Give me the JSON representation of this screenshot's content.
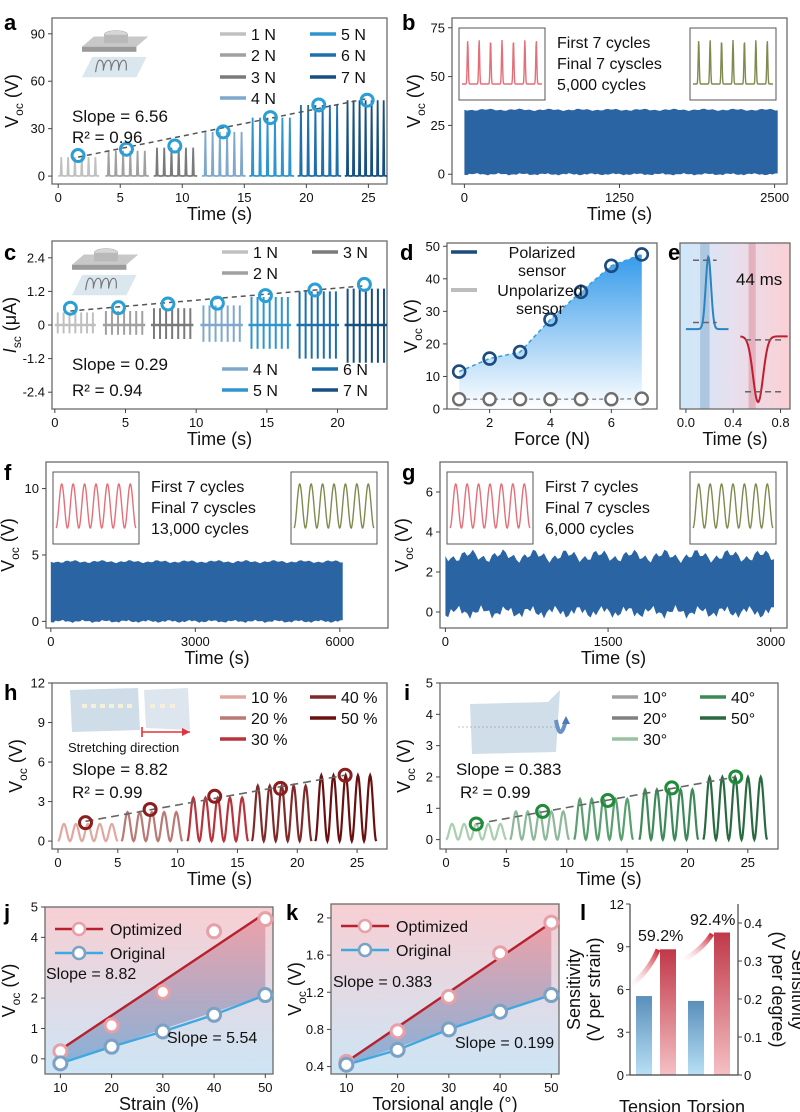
{
  "chart_data": [
    {
      "id": "a",
      "panel_label": "a",
      "type": "line",
      "title": "",
      "xlabel": "Time (s)",
      "ylabel": "V_oc (V)",
      "xlim": [
        -0.5,
        26.5
      ],
      "ylim": [
        -5,
        100
      ],
      "xticks": [
        0,
        5,
        10,
        15,
        20,
        25
      ],
      "yticks": [
        0,
        30,
        60,
        90
      ],
      "legend": {
        "placement": "top-right",
        "columns": 2
      },
      "series": [
        {
          "name": "1 N",
          "color": "#c0c0c0",
          "x_start": 0,
          "x_end": 3.3,
          "peak": 12,
          "cycles": 6
        },
        {
          "name": "2 N",
          "color": "#a0a0a0",
          "x_start": 3.8,
          "x_end": 7.3,
          "peak": 16,
          "cycles": 6
        },
        {
          "name": "3 N",
          "color": "#7a7a7a",
          "x_start": 7.7,
          "x_end": 11.2,
          "peak": 18,
          "cycles": 6
        },
        {
          "name": "4 N",
          "color": "#7fa8cc",
          "x_start": 11.6,
          "x_end": 15.1,
          "peak": 28,
          "cycles": 6
        },
        {
          "name": "5 N",
          "color": "#2f95cf",
          "x_start": 15.4,
          "x_end": 19.0,
          "peak": 37,
          "cycles": 6
        },
        {
          "name": "6 N",
          "color": "#1f6fad",
          "x_start": 19.3,
          "x_end": 22.8,
          "peak": 45,
          "cycles": 6
        },
        {
          "name": "7 N",
          "color": "#164f80",
          "x_start": 23.1,
          "x_end": 26.5,
          "peak": 48,
          "cycles": 7
        }
      ],
      "markers": {
        "color": "#2a9fd6",
        "x": [
          1.6,
          5.5,
          9.4,
          13.3,
          17.1,
          21.0,
          24.9
        ],
        "y": [
          13,
          17,
          19,
          28,
          37,
          45,
          48
        ]
      },
      "fit_line": {
        "x": [
          1.6,
          24.9
        ],
        "y": [
          12,
          49
        ]
      },
      "annotations": [
        "Slope = 6.56",
        "R² = 0.96"
      ],
      "inset": "device-illustration"
    },
    {
      "id": "b",
      "panel_label": "b",
      "type": "area",
      "xlabel": "Time (s)",
      "ylabel": "V_oc (V)",
      "xlim": [
        -100,
        2600
      ],
      "ylim": [
        -5,
        80
      ],
      "xticks": [
        0,
        1250,
        2500
      ],
      "yticks": [
        0,
        25,
        50,
        75
      ],
      "band": {
        "low": 0,
        "high": 33,
        "color": "#2a64a3"
      },
      "legend_text": [
        {
          "text": "First 7 cycles",
          "color": "#e0506a"
        },
        {
          "text": "Final 7 cyscles",
          "color": "#2a64a3"
        },
        {
          "text": "5,000 cycles",
          "color": "#5a5f1c"
        }
      ],
      "insets": [
        {
          "color": "#e46f78",
          "shape": "spike",
          "cycles": 7
        },
        {
          "color": "#7f8a4f",
          "shape": "spike",
          "cycles": 7
        }
      ]
    },
    {
      "id": "c",
      "panel_label": "c",
      "type": "line",
      "xlabel": "Time (s)",
      "ylabel": "I_sc (μA)",
      "xlim": [
        -0.2,
        23.5
      ],
      "ylim": [
        -3.0,
        3.0
      ],
      "xticks": [
        0,
        5,
        10,
        15,
        20
      ],
      "yticks": [
        -2.4,
        -1.2,
        0,
        1.2,
        2.4
      ],
      "series": [
        {
          "name": "1 N",
          "color": "#c0c0c0",
          "x_start": 0,
          "x_end": 2.9,
          "pos": 0.45,
          "neg": -0.3
        },
        {
          "name": "2 N",
          "color": "#a0a0a0",
          "x_start": 3.4,
          "x_end": 6.4,
          "pos": 0.5,
          "neg": -0.35
        },
        {
          "name": "3 N",
          "color": "#7a7a7a",
          "x_start": 6.8,
          "x_end": 9.8,
          "pos": 0.6,
          "neg": -0.5
        },
        {
          "name": "4 N",
          "color": "#7fa8cc",
          "x_start": 10.3,
          "x_end": 13.3,
          "pos": 0.7,
          "neg": -0.6
        },
        {
          "name": "5 N",
          "color": "#2f95cf",
          "x_start": 13.7,
          "x_end": 16.7,
          "pos": 1.0,
          "neg": -0.85
        },
        {
          "name": "6 N",
          "color": "#1f6fad",
          "x_start": 17.1,
          "x_end": 20.1,
          "pos": 1.2,
          "neg": -1.2
        },
        {
          "name": "7 N",
          "color": "#164f80",
          "x_start": 20.5,
          "x_end": 23.5,
          "pos": 1.3,
          "neg": -1.35
        }
      ],
      "markers": {
        "color": "#2a9fd6",
        "x": [
          1.1,
          4.5,
          8.0,
          11.5,
          14.9,
          18.4,
          21.9
        ],
        "y": [
          0.6,
          0.62,
          0.75,
          0.78,
          1.05,
          1.25,
          1.45
        ]
      },
      "fit_line": {
        "x": [
          1.1,
          21.9
        ],
        "y": [
          0.5,
          1.4
        ]
      },
      "annotations": [
        "Slope = 0.29",
        "R² = 0.94"
      ],
      "legend_top": [
        "1 N",
        "3 N",
        "2 N"
      ],
      "legend_bottom": [
        "4 N",
        "6 N",
        "5 N",
        "7 N"
      ],
      "inset": "device-illustration"
    },
    {
      "id": "d",
      "panel_label": "d",
      "type": "scatter",
      "xlabel": "Force  (N)",
      "ylabel": "V_oc (V)",
      "xlim": [
        0.6,
        7.5
      ],
      "ylim": [
        0,
        51
      ],
      "xticks": [
        2,
        4,
        6
      ],
      "yticks": [
        0,
        10,
        20,
        30,
        40,
        50
      ],
      "x": [
        1,
        2,
        3,
        4,
        5,
        6,
        7
      ],
      "series": [
        {
          "name": "Polarized sensor",
          "color": "#1c4b7d",
          "values": [
            11.5,
            15.5,
            17.5,
            27.5,
            36,
            44,
            47.5
          ]
        },
        {
          "name": "Unpolarized sensor",
          "color": "#6e6e6e",
          "legend_color": "#bdbdbd",
          "values": [
            3,
            3,
            3,
            3,
            3,
            3,
            3.2
          ]
        }
      ]
    },
    {
      "id": "e",
      "panel_label": "e",
      "type": "line",
      "xlabel": "Time (s)",
      "ylabel": "",
      "xlim": [
        -0.05,
        0.88
      ],
      "ylim": [
        -1.2,
        1.2
      ],
      "xticks": [
        0.0,
        0.4,
        0.8
      ],
      "annotation": "44 ms",
      "pulse_up": {
        "color": "#2a84c0",
        "center": 0.19,
        "peak": 1.0
      },
      "pulse_down": {
        "color": "#c21d2f",
        "center": 0.61,
        "peak": -1.0
      }
    },
    {
      "id": "f",
      "panel_label": "f",
      "type": "area",
      "xlabel": "Time (s)",
      "ylabel": "V_oc (V)",
      "xlim": [
        -100,
        7000
      ],
      "ylim": [
        -0.5,
        12
      ],
      "xticks": [
        0,
        3000,
        6000
      ],
      "yticks": [
        0,
        5,
        10
      ],
      "band": {
        "low": 0,
        "high": 4.5,
        "color": "#2a64a3"
      },
      "legend_text": [
        {
          "text": "First 7 cycles",
          "color": "#e0506a"
        },
        {
          "text": "Final 7 cyscles",
          "color": "#2a64a3"
        },
        {
          "text": "13,000 cycles",
          "color": "#5a5f1c"
        }
      ],
      "insets": [
        {
          "color": "#e46f78",
          "shape": "sine",
          "cycles": 7
        },
        {
          "color": "#7f8a4f",
          "shape": "sine",
          "cycles": 7
        }
      ]
    },
    {
      "id": "g",
      "panel_label": "g",
      "type": "area",
      "xlabel": "Time (s)",
      "ylabel": "V_oc (V)",
      "xlim": [
        -50,
        3150
      ],
      "ylim": [
        -0.8,
        7.5
      ],
      "xticks": [
        0,
        1500,
        3000
      ],
      "yticks": [
        0,
        2,
        4,
        6
      ],
      "band": {
        "low": 0,
        "high": 2.8,
        "color": "#2a64a3"
      },
      "legend_text": [
        {
          "text": "First 7 cycles",
          "color": "#e0506a"
        },
        {
          "text": "Final 7 cyscles",
          "color": "#2a64a3"
        },
        {
          "text": "6,000 cycles",
          "color": "#5a5f1c"
        }
      ],
      "insets": [
        {
          "color": "#e46f78",
          "shape": "sine",
          "cycles": 7
        },
        {
          "color": "#7f8a4f",
          "shape": "sine",
          "cycles": 7
        }
      ]
    },
    {
      "id": "h",
      "panel_label": "h",
      "type": "line",
      "xlabel": "Time (s)",
      "ylabel": "V_oc (V)",
      "xlim": [
        -0.5,
        27.5
      ],
      "ylim": [
        -0.6,
        12
      ],
      "xticks": [
        0,
        5,
        10,
        15,
        20,
        25
      ],
      "yticks": [
        0,
        3,
        6,
        9,
        12
      ],
      "series": [
        {
          "name": "10 %",
          "color": "#e0a8a0",
          "x_start": 0,
          "x_end": 5.0,
          "peak": 1.3,
          "cycles": 5
        },
        {
          "name": "20 %",
          "color": "#b87a74",
          "x_start": 5.3,
          "x_end": 10.4,
          "peak": 2.2,
          "cycles": 5
        },
        {
          "name": "30 %",
          "color": "#b8343c",
          "x_start": 10.8,
          "x_end": 15.9,
          "peak": 3.3,
          "cycles": 5
        },
        {
          "name": "40 %",
          "color": "#7f2a2a",
          "x_start": 16.2,
          "x_end": 21.2,
          "peak": 4.2,
          "cycles": 5
        },
        {
          "name": "50 %",
          "color": "#6a1010",
          "x_start": 21.5,
          "x_end": 26.6,
          "peak": 5.0,
          "cycles": 5
        }
      ],
      "markers": {
        "color": "#8c1e1e",
        "x": [
          2.3,
          7.7,
          13.1,
          18.6,
          24.0
        ],
        "y": [
          1.4,
          2.4,
          3.4,
          4.0,
          5.0
        ]
      },
      "fit_line": {
        "x": [
          2.3,
          24.0
        ],
        "y": [
          1.5,
          5.0
        ]
      },
      "annotations": [
        "Slope = 8.82",
        "R² = 0.99"
      ],
      "inset_caption": "Stretching direction",
      "inset_caption_color": "#e0343c"
    },
    {
      "id": "i",
      "panel_label": "i",
      "type": "line",
      "xlabel": "Time (s)",
      "ylabel": "V_oc (V)",
      "xlim": [
        -0.5,
        27.5
      ],
      "ylim": [
        -0.3,
        5
      ],
      "xticks": [
        0,
        5,
        10,
        15,
        20,
        25
      ],
      "yticks": [
        0,
        1,
        2,
        3,
        4,
        5
      ],
      "series": [
        {
          "name": "10°",
          "color": "#a8cfae",
          "x_start": 0,
          "x_end": 5.0,
          "peak": 0.5,
          "cycles": 5
        },
        {
          "name": "20°",
          "color": "#8fb89a",
          "x_start": 5.3,
          "x_end": 10.2,
          "peak": 0.9,
          "cycles": 5
        },
        {
          "name": "30°",
          "color": "#58a070",
          "x_start": 10.6,
          "x_end": 15.5,
          "peak": 1.3,
          "cycles": 5
        },
        {
          "name": "40°",
          "color": "#3d8a58",
          "x_start": 16.0,
          "x_end": 20.9,
          "peak": 1.6,
          "cycles": 5
        },
        {
          "name": "50°",
          "color": "#2a6a40",
          "x_start": 21.3,
          "x_end": 26.6,
          "peak": 2.0,
          "cycles": 5
        }
      ],
      "legend_colors": [
        "#a0a0a0",
        "#808080",
        "#98c2a0",
        "#3d8a58",
        "#2a6a40"
      ],
      "markers": {
        "color": "#1f8c3a",
        "x": [
          2.5,
          8.0,
          13.4,
          18.7,
          24.0
        ],
        "y": [
          0.5,
          0.9,
          1.25,
          1.65,
          2.0
        ]
      },
      "fit_line": {
        "x": [
          2.5,
          24.0
        ],
        "y": [
          0.5,
          2.0
        ]
      },
      "annotations": [
        "Slope = 0.383",
        "R² = 0.99"
      ]
    },
    {
      "id": "j",
      "panel_label": "j",
      "type": "line",
      "xlabel": "Strain (%)",
      "ylabel": "V_oc (V)",
      "xlim": [
        7,
        51.5
      ],
      "ylim": [
        -0.5,
        5
      ],
      "xticks": [
        10,
        20,
        30,
        40,
        50
      ],
      "yticks": [
        0,
        1,
        2,
        4,
        5
      ],
      "x": [
        10,
        20,
        30,
        40,
        50
      ],
      "series": [
        {
          "name": "Optimized",
          "color": "#b8202c",
          "marker_color": "#e8a0a8",
          "values": [
            0.25,
            1.1,
            2.2,
            4.2,
            4.6
          ],
          "fit": [
            0.3,
            4.8
          ],
          "slope_label": "Slope = 8.82"
        },
        {
          "name": "Original",
          "color": "#3fa8e0",
          "marker_color": "#7ba2c4",
          "values": [
            -0.15,
            0.4,
            0.9,
            1.45,
            2.1
          ],
          "fit": [
            -0.15,
            2.1
          ],
          "slope_label": "Slope = 5.54"
        }
      ]
    },
    {
      "id": "k",
      "panel_label": "k",
      "type": "line",
      "xlabel": "Torsional angle (°)",
      "ylabel": "V_oc (V)",
      "xlim": [
        7,
        51.5
      ],
      "ylim": [
        0.32,
        2.15
      ],
      "xticks": [
        10,
        20,
        30,
        40,
        50
      ],
      "yticks": [
        0.4,
        0.8,
        1.2,
        1.6,
        2.0
      ],
      "x": [
        10,
        20,
        30,
        40,
        50
      ],
      "series": [
        {
          "name": "Optimized",
          "color": "#b8202c",
          "marker_color": "#e8a0a8",
          "values": [
            0.45,
            0.78,
            1.15,
            1.62,
            1.95
          ],
          "fit": [
            0.45,
            1.95
          ],
          "slope_label": "Slope = 0.383"
        },
        {
          "name": "Original",
          "color": "#3fa8e0",
          "marker_color": "#7ba2c4",
          "values": [
            0.42,
            0.58,
            0.8,
            0.99,
            1.17
          ],
          "fit": [
            0.42,
            1.17
          ],
          "slope_label": "Slope = 0.199"
        }
      ]
    },
    {
      "id": "l",
      "panel_label": "l",
      "type": "bar",
      "xlabel": "",
      "categories": [
        "Tension",
        "Torsion"
      ],
      "ylabel": "Sensitivity (V per strain)",
      "ylim": [
        0,
        12
      ],
      "yticks": [
        0,
        3,
        6,
        9,
        12
      ],
      "y2label": "Sensitivity (V per degree)",
      "y2lim": [
        0,
        0.45
      ],
      "y2ticks": [
        0,
        0.1,
        0.2,
        0.3,
        0.4
      ],
      "series": [
        {
          "name": "Original",
          "values": [
            5.54,
            5.2
          ],
          "color_top": "#5a8fbb",
          "color_bottom": "#b8e0f5"
        },
        {
          "name": "Optimized",
          "values": [
            8.82,
            10.0
          ],
          "color_top": "#c03848",
          "color_bottom": "#f5c0c4"
        }
      ],
      "increase_labels": [
        "59.2%",
        "92.4%"
      ],
      "increase_color": "#c21d2f"
    }
  ]
}
